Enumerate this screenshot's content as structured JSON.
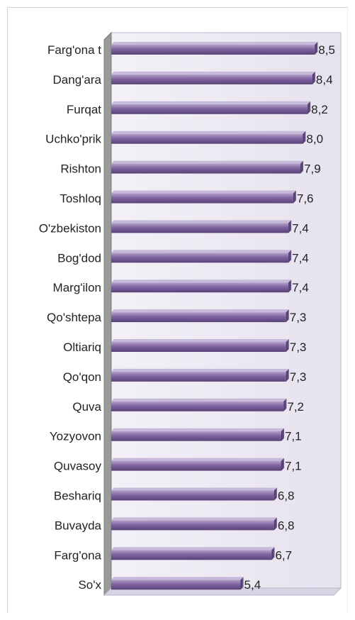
{
  "chart_data": {
    "type": "bar",
    "orientation": "horizontal",
    "title": "",
    "xlabel": "",
    "ylabel": "",
    "categories": [
      "Farg'ona t",
      "Dang'ara",
      "Furqat",
      "Uchko'prik",
      "Rishton",
      "Toshloq",
      "O'zbekiston",
      "Bog'dod",
      "Marg'ilon",
      "Qo'shtepa",
      "Oltiariq",
      "Qo'qon",
      "Quva",
      "Yozyovon",
      "Quvasoy",
      "Beshariq",
      "Buvayda",
      "Farg'ona",
      "So'x"
    ],
    "values": [
      8.5,
      8.4,
      8.2,
      8.0,
      7.9,
      7.6,
      7.4,
      7.4,
      7.4,
      7.3,
      7.3,
      7.3,
      7.2,
      7.1,
      7.1,
      6.8,
      6.8,
      6.7,
      5.4
    ],
    "value_labels": [
      "8,5",
      "8,4",
      "8,2",
      "8,0",
      "7,9",
      "7,6",
      "7,4",
      "7,4",
      "7,4",
      "7,3",
      "7,3",
      "7,3",
      "7,2",
      "7,1",
      "7,1",
      "6,8",
      "6,8",
      "6,7",
      "5,4"
    ],
    "xlim": [
      0,
      9.5
    ],
    "grid": false,
    "legend": "none",
    "bar_color": "#8064a2",
    "bar_highlight": "#b3a2c7",
    "bar_shadow": "#5a4377",
    "plot_background": "#ebe8f2"
  }
}
